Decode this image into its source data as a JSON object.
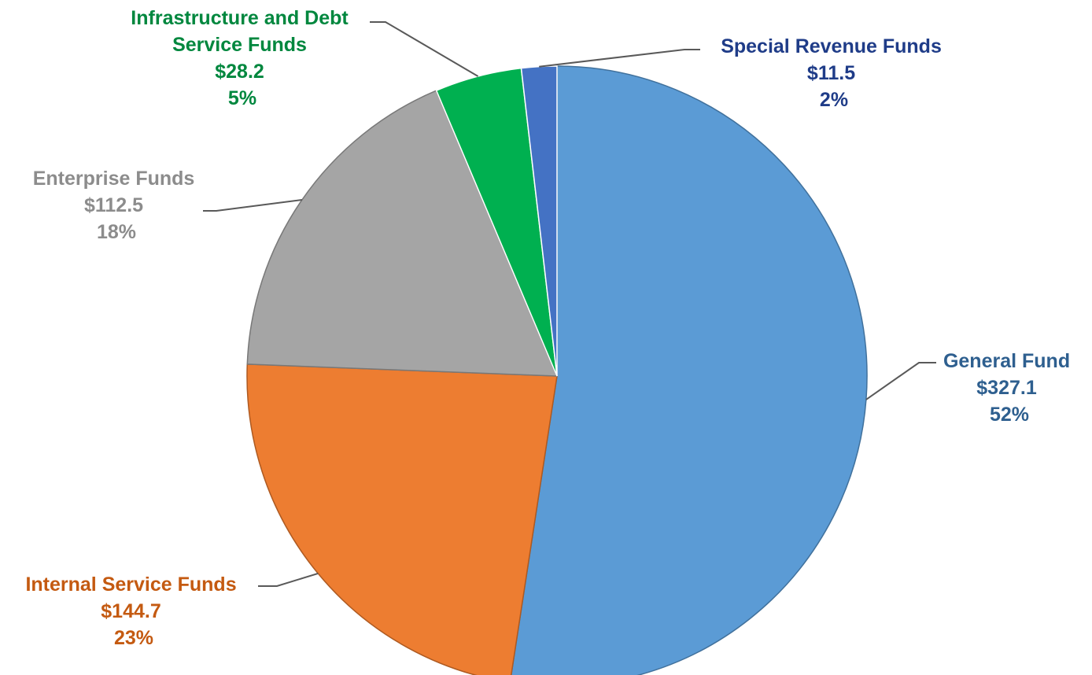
{
  "chart_data": {
    "type": "pie",
    "unit_prefix": "$",
    "slices": [
      {
        "name": "General Fund",
        "value": 327.1,
        "value_label": "$327.1",
        "percent_label": "52%",
        "color": "#5b9bd5",
        "label_color": "#2e5f8f"
      },
      {
        "name": "Internal Service Funds",
        "value": 144.7,
        "value_label": "$144.7",
        "percent_label": "23%",
        "color": "#ed7d31",
        "label_color": "#c45a11"
      },
      {
        "name": "Enterprise Funds",
        "value": 112.5,
        "value_label": "$112.5",
        "percent_label": "18%",
        "color": "#a5a5a5",
        "label_color": "#8c8c8c"
      },
      {
        "name_lines": [
          "Infrastructure and Debt",
          "Service Funds"
        ],
        "name": "Infrastructure and Debt Service Funds",
        "value": 28.2,
        "value_label": "$28.2",
        "percent_label": "5%",
        "color": "#00b050",
        "label_color": "#00873e"
      },
      {
        "name": "Special Revenue Funds",
        "value": 11.5,
        "value_label": "$11.5",
        "percent_label": "2%",
        "color": "#4472c4",
        "label_color": "#1f3c88"
      }
    ],
    "start": "12 o'clock",
    "direction": "clockwise",
    "legend": "none",
    "data_labels": "outside with leader lines"
  }
}
